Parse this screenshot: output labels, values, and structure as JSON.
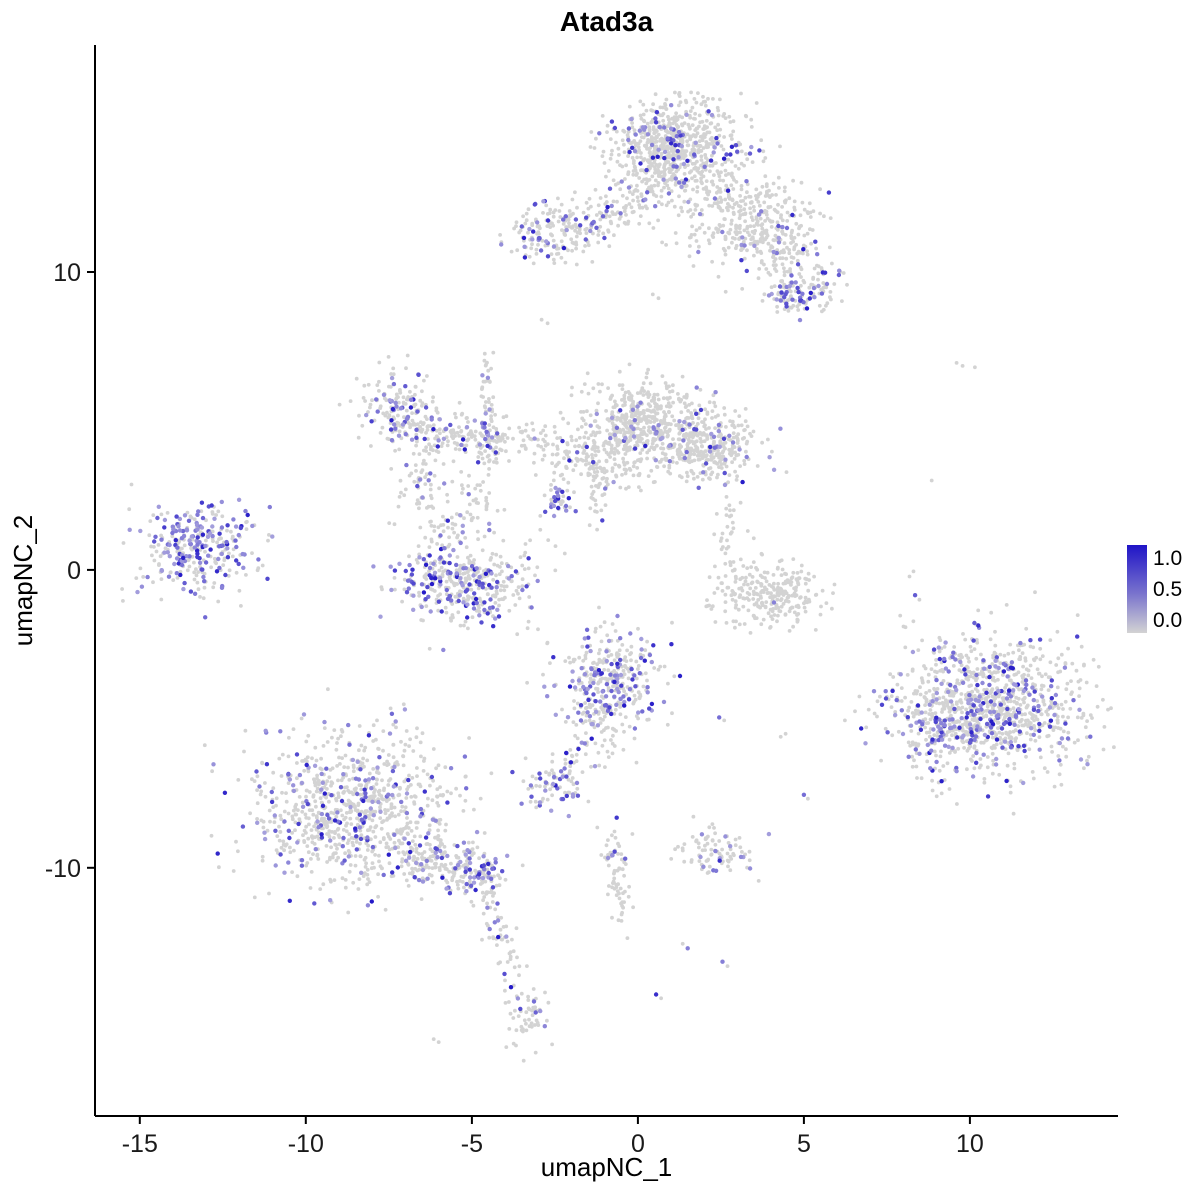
{
  "chart_data": {
    "type": "scatter",
    "title": "Atad3a",
    "xlabel": "umapNC_1",
    "ylabel": "umapNC_2",
    "x_domain": [
      -16.35,
      14.46
    ],
    "y_domain": [
      -18.33,
      17.62
    ],
    "x_ticks": [
      -15,
      -10,
      -5,
      0,
      5,
      10
    ],
    "x_tick_labels": [
      "-15",
      "-10",
      "-5",
      "0",
      "5",
      "10"
    ],
    "y_ticks": [
      -10,
      0,
      10
    ],
    "y_tick_labels": [
      "-10",
      "0",
      "10"
    ],
    "grid": false,
    "legend": {
      "position": "right",
      "tick_labels": [
        "1.0",
        "0.5",
        "0.0"
      ],
      "tick_values": [
        1.0,
        0.5,
        0.0
      ]
    },
    "colors": {
      "zero": "#d3d3d3",
      "low": "#cac6e2",
      "mid": "#7973cd",
      "high": "#1f14c7",
      "axis": "#000000",
      "background": "#ffffff"
    },
    "point_radius": {
      "gray": 1.9,
      "colored": 2.2
    },
    "n_points_approx": 7200,
    "clusters": [
      {
        "name": "top-main",
        "cx": 1.3,
        "cy": 14.0,
        "sx": 1.05,
        "sy": 0.85,
        "n": 620,
        "frac": 0.1
      },
      {
        "name": "top-main-core",
        "cx": 0.9,
        "cy": 14.6,
        "sx": 0.5,
        "sy": 0.45,
        "n": 150,
        "frac": 0.12
      },
      {
        "name": "top-right-arm",
        "cx": 3.2,
        "cy": 11.7,
        "sx": 1.05,
        "sy": 0.75,
        "n": 330,
        "frac": 0.05
      },
      {
        "name": "top-right-mid",
        "cx": 4.4,
        "cy": 10.6,
        "sx": 0.5,
        "sy": 0.45,
        "n": 80,
        "frac": 0.1
      },
      {
        "name": "top-right-tip",
        "cx": 5.3,
        "cy": 9.6,
        "sx": 0.5,
        "sy": 0.45,
        "n": 90,
        "frac": 0.22
      },
      {
        "name": "top-right-purple-spot",
        "cx": 4.55,
        "cy": 9.05,
        "sx": 0.28,
        "sy": 0.25,
        "n": 40,
        "frac": 0.45
      },
      {
        "name": "top-left-arm",
        "cx": -2.65,
        "cy": 11.35,
        "sx": 0.7,
        "sy": 0.5,
        "n": 150,
        "frac": 0.22
      },
      {
        "name": "top-left-bridge",
        "cx": -1.3,
        "cy": 11.7,
        "sx": 0.55,
        "sy": 0.35,
        "n": 70,
        "frac": 0.12
      },
      {
        "name": "top-bridge-sparse",
        "cx": 0.0,
        "cy": 12.4,
        "sx": 0.6,
        "sy": 0.55,
        "n": 55,
        "frac": 0.05
      },
      {
        "name": "mid-main",
        "cx": 0.15,
        "cy": 4.8,
        "sx": 1.0,
        "sy": 0.8,
        "n": 560,
        "frac": 0.07
      },
      {
        "name": "mid-right-lobe",
        "cx": 2.15,
        "cy": 4.1,
        "sx": 0.7,
        "sy": 0.6,
        "n": 290,
        "frac": 0.12
      },
      {
        "name": "mid-left-trail",
        "cx": -1.6,
        "cy": 3.6,
        "sx": 0.75,
        "sy": 0.45,
        "n": 110,
        "frac": 0.05
      },
      {
        "name": "mid-lower-strand",
        "cx": -1.2,
        "cy": 2.4,
        "sx": 0.18,
        "sy": 0.5,
        "n": 25,
        "frac": 0.08
      },
      {
        "name": "purple-spur",
        "cx": -2.45,
        "cy": 2.3,
        "sx": 0.22,
        "sy": 0.2,
        "n": 35,
        "frac": 0.55
      },
      {
        "name": "left-chain-top",
        "cx": -7.2,
        "cy": 5.5,
        "sx": 0.6,
        "sy": 0.55,
        "n": 150,
        "frac": 0.25
      },
      {
        "name": "left-chain-arm",
        "cx": -6.1,
        "cy": 4.6,
        "sx": 0.65,
        "sy": 0.4,
        "n": 110,
        "frac": 0.15
      },
      {
        "name": "chain-blob",
        "cx": -4.45,
        "cy": 4.2,
        "sx": 0.45,
        "sy": 0.4,
        "n": 95,
        "frac": 0.15
      },
      {
        "name": "thin-strand-up",
        "cx": -4.55,
        "cy": 5.8,
        "sx": 0.14,
        "sy": 0.85,
        "n": 45,
        "frac": 0.12
      },
      {
        "name": "strand-bridge",
        "cx": -3.1,
        "cy": 4.4,
        "sx": 0.5,
        "sy": 0.35,
        "n": 35,
        "frac": 0.05
      },
      {
        "name": "chain-descent",
        "cx": -6.55,
        "cy": 2.9,
        "sx": 0.35,
        "sy": 0.65,
        "n": 55,
        "frac": 0.1
      },
      {
        "name": "chain-descent2",
        "cx": -5.6,
        "cy": 1.6,
        "sx": 0.4,
        "sy": 0.6,
        "n": 45,
        "frac": 0.1
      },
      {
        "name": "loop-left",
        "cx": -4.95,
        "cy": 2.4,
        "sx": 0.3,
        "sy": 0.45,
        "n": 30,
        "frac": 0.1
      },
      {
        "name": "lower-left-blob",
        "cx": -5.25,
        "cy": -0.45,
        "sx": 1.0,
        "sy": 0.65,
        "n": 400,
        "frac": 0.28
      },
      {
        "name": "far-left",
        "cx": -13.3,
        "cy": 0.75,
        "sx": 0.85,
        "sy": 0.75,
        "n": 310,
        "frac": 0.45
      },
      {
        "name": "right-column",
        "cx": 2.75,
        "cy": 0.9,
        "sx": 0.18,
        "sy": 0.7,
        "n": 35,
        "frac": 0.05
      },
      {
        "name": "right-crescent",
        "cx": 3.9,
        "cy": -0.85,
        "sx": 0.8,
        "sy": 0.5,
        "n": 270,
        "frac": 0.03
      },
      {
        "name": "center-bottom",
        "cx": -0.8,
        "cy": -3.7,
        "sx": 0.75,
        "sy": 0.8,
        "n": 340,
        "frac": 0.28
      },
      {
        "name": "center-bottom-tail",
        "cx": -1.2,
        "cy": -5.5,
        "sx": 0.4,
        "sy": 0.55,
        "n": 60,
        "frac": 0.12
      },
      {
        "name": "tail-dots",
        "cx": -1.9,
        "cy": -6.3,
        "sx": 0.2,
        "sy": 0.25,
        "n": 12,
        "frac": 0.1
      },
      {
        "name": "small-blob-left",
        "cx": -2.6,
        "cy": -7.2,
        "sx": 0.45,
        "sy": 0.4,
        "n": 75,
        "frac": 0.35
      },
      {
        "name": "bottom-left-main",
        "cx": -8.6,
        "cy": -8.0,
        "sx": 1.5,
        "sy": 1.3,
        "n": 880,
        "frac": 0.17
      },
      {
        "name": "bottom-left-arm",
        "cx": -6.3,
        "cy": -9.6,
        "sx": 0.6,
        "sy": 0.45,
        "n": 120,
        "frac": 0.2
      },
      {
        "name": "bottom-arm-blob",
        "cx": -4.9,
        "cy": -10.2,
        "sx": 0.5,
        "sy": 0.4,
        "n": 130,
        "frac": 0.35
      },
      {
        "name": "tail-strand1",
        "cx": -4.3,
        "cy": -11.6,
        "sx": 0.2,
        "sy": 0.6,
        "n": 28,
        "frac": 0.15
      },
      {
        "name": "tail-strand2",
        "cx": -3.9,
        "cy": -13.0,
        "sx": 0.2,
        "sy": 0.55,
        "n": 22,
        "frac": 0.1
      },
      {
        "name": "bottom-tip-blob",
        "cx": -3.4,
        "cy": -14.9,
        "sx": 0.35,
        "sy": 0.5,
        "n": 60,
        "frac": 0.15
      },
      {
        "name": "bottom-strand-mid",
        "cx": -0.7,
        "cy": -9.6,
        "sx": 0.25,
        "sy": 0.5,
        "n": 40,
        "frac": 0.05
      },
      {
        "name": "bottom-strand-mid2",
        "cx": -0.5,
        "cy": -11.1,
        "sx": 0.2,
        "sy": 0.5,
        "n": 28,
        "frac": 0.0
      },
      {
        "name": "bottom-small-cluster",
        "cx": 2.3,
        "cy": -9.4,
        "sx": 0.55,
        "sy": 0.4,
        "n": 90,
        "frac": 0.12
      },
      {
        "name": "right-main",
        "cx": 10.6,
        "cy": -4.6,
        "sx": 1.45,
        "sy": 1.15,
        "n": 1050,
        "frac": 0.22
      },
      {
        "name": "right-main-left-edge",
        "cx": 8.9,
        "cy": -5.6,
        "sx": 0.45,
        "sy": 0.7,
        "n": 80,
        "frac": 0.3
      }
    ],
    "extra_points": [
      [
        -2.9,
        8.4,
        0
      ],
      [
        -2.72,
        8.28,
        0
      ],
      [
        0.45,
        9.25,
        0
      ],
      [
        0.62,
        9.12,
        0
      ],
      [
        9.6,
        6.95,
        0
      ],
      [
        9.78,
        6.85,
        0
      ],
      [
        10.15,
        6.8,
        0
      ],
      [
        8.85,
        3.0,
        0
      ],
      [
        8.3,
        -0.05,
        0
      ],
      [
        8.18,
        -0.22,
        0
      ],
      [
        8.35,
        -0.85,
        0.6
      ],
      [
        8.48,
        -1.0,
        0
      ],
      [
        8.0,
        -1.9,
        0
      ],
      [
        9.0,
        -7.6,
        0
      ],
      [
        9.15,
        -7.5,
        0
      ],
      [
        5.0,
        -7.55,
        0.5
      ],
      [
        5.12,
        -7.68,
        0
      ],
      [
        4.3,
        -5.6,
        0
      ],
      [
        4.45,
        -5.5,
        0
      ],
      [
        2.45,
        -4.95,
        0.5
      ],
      [
        2.6,
        -5.05,
        0
      ],
      [
        0.9,
        -5.2,
        0
      ],
      [
        1.35,
        -12.55,
        0
      ],
      [
        1.5,
        -12.7,
        0.4
      ],
      [
        2.55,
        -13.15,
        0.4
      ],
      [
        2.7,
        -13.3,
        0
      ],
      [
        0.55,
        -14.25,
        0.85
      ],
      [
        0.7,
        -14.38,
        0
      ],
      [
        -6.15,
        -15.75,
        0
      ],
      [
        -6.0,
        -15.85,
        0
      ],
      [
        -11.8,
        1.6,
        0
      ],
      [
        -11.55,
        1.5,
        0
      ],
      [
        -11.3,
        0.15,
        0
      ],
      [
        -12.0,
        -0.7,
        0
      ],
      [
        -2.7,
        1.0,
        0
      ],
      [
        -2.48,
        0.8,
        0
      ],
      [
        -2.2,
        0.55,
        0
      ],
      [
        -1.45,
        1.5,
        0
      ]
    ]
  }
}
